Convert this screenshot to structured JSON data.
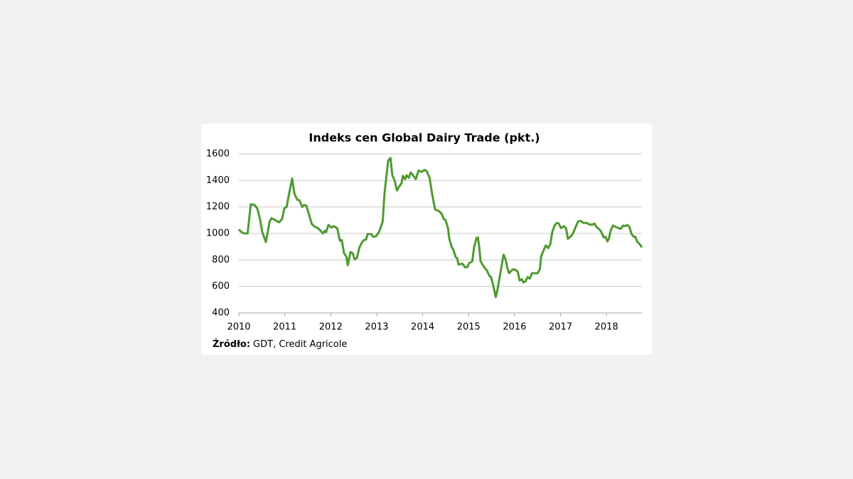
{
  "chart_data": {
    "type": "line",
    "title": "Indeks cen Global Dairy Trade (pkt.)",
    "source_label": "Źródło:",
    "source_text": "GDT, Credit Agricole",
    "xlim": [
      2010,
      2018.77
    ],
    "xticks": [
      2010,
      2011,
      2012,
      2013,
      2014,
      2015,
      2016,
      2017,
      2018
    ],
    "ylim": [
      400,
      1600
    ],
    "yticks": [
      400,
      600,
      800,
      1000,
      1200,
      1400,
      1600
    ],
    "grid": true,
    "series": [
      {
        "color": "#4e9a2f",
        "x": [
          2010.0,
          2010.06,
          2010.12,
          2010.19,
          2010.26,
          2010.34,
          2010.4,
          2010.46,
          2010.51,
          2010.59,
          2010.67,
          2010.71,
          2010.77,
          2010.84,
          2010.88,
          2010.94,
          2010.99,
          2011.04,
          2011.1,
          2011.16,
          2011.21,
          2011.27,
          2011.32,
          2011.38,
          2011.42,
          2011.47,
          2011.53,
          2011.59,
          2011.66,
          2011.72,
          2011.78,
          2011.83,
          2011.87,
          2011.9,
          2011.95,
          2012.01,
          2012.07,
          2012.14,
          2012.2,
          2012.24,
          2012.29,
          2012.34,
          2012.37,
          2012.43,
          2012.48,
          2012.52,
          2012.57,
          2012.62,
          2012.68,
          2012.72,
          2012.77,
          2012.8,
          2012.88,
          2012.92,
          2012.99,
          2013.05,
          2013.13,
          2013.17,
          2013.25,
          2013.3,
          2013.34,
          2013.39,
          2013.44,
          2013.5,
          2013.54,
          2013.57,
          2013.62,
          2013.65,
          2013.7,
          2013.74,
          2013.79,
          2013.85,
          2013.91,
          2013.98,
          2014.04,
          2014.09,
          2014.15,
          2014.21,
          2014.27,
          2014.35,
          2014.41,
          2014.46,
          2014.5,
          2014.55,
          2014.58,
          2014.63,
          2014.67,
          2014.72,
          2014.75,
          2014.78,
          2014.83,
          2014.87,
          2014.92,
          2014.97,
          2015.01,
          2015.08,
          2015.12,
          2015.17,
          2015.2,
          2015.23,
          2015.26,
          2015.31,
          2015.35,
          2015.4,
          2015.45,
          2015.49,
          2015.54,
          2015.59,
          2015.63,
          2015.69,
          2015.76,
          2015.8,
          2015.85,
          2015.88,
          2015.93,
          2015.97,
          2016.02,
          2016.07,
          2016.11,
          2016.16,
          2016.19,
          2016.24,
          2016.28,
          2016.33,
          2016.38,
          2016.44,
          2016.5,
          2016.55,
          2016.58,
          2016.64,
          2016.68,
          2016.73,
          2016.78,
          2016.82,
          2016.87,
          2016.92,
          2016.96,
          2017.01,
          2017.07,
          2017.12,
          2017.16,
          2017.23,
          2017.27,
          2017.33,
          2017.38,
          2017.44,
          2017.5,
          2017.57,
          2017.61,
          2017.68,
          2017.74,
          2017.78,
          2017.85,
          2017.89,
          2017.94,
          2017.98,
          2018.02,
          2018.05,
          2018.09,
          2018.14,
          2018.2,
          2018.26,
          2018.31,
          2018.36,
          2018.4,
          2018.45,
          2018.5,
          2018.54,
          2018.59,
          2018.63,
          2018.67,
          2018.71,
          2018.77
        ],
        "values": [
          1030,
          1010,
          1000,
          1000,
          1220,
          1215,
          1190,
          1110,
          1010,
          935,
          1090,
          1115,
          1105,
          1090,
          1085,
          1110,
          1190,
          1200,
          1310,
          1415,
          1300,
          1255,
          1250,
          1200,
          1215,
          1210,
          1140,
          1070,
          1050,
          1040,
          1020,
          1000,
          1020,
          1010,
          1065,
          1045,
          1055,
          1040,
          945,
          950,
          850,
          825,
          760,
          860,
          850,
          805,
          815,
          890,
          935,
          950,
          955,
          995,
          995,
          975,
          980,
          1010,
          1090,
          1300,
          1550,
          1570,
          1440,
          1400,
          1325,
          1360,
          1380,
          1435,
          1410,
          1440,
          1420,
          1460,
          1440,
          1410,
          1475,
          1465,
          1480,
          1470,
          1420,
          1290,
          1180,
          1170,
          1150,
          1110,
          1100,
          1040,
          960,
          900,
          875,
          820,
          815,
          765,
          770,
          770,
          745,
          745,
          775,
          790,
          900,
          965,
          970,
          900,
          790,
          760,
          740,
          720,
          680,
          670,
          600,
          520,
          580,
          700,
          840,
          810,
          730,
          700,
          720,
          730,
          725,
          710,
          645,
          655,
          630,
          640,
          670,
          660,
          700,
          700,
          700,
          730,
          830,
          880,
          910,
          890,
          920,
          1010,
          1060,
          1080,
          1075,
          1040,
          1055,
          1040,
          960,
          980,
          1000,
          1050,
          1090,
          1095,
          1080,
          1080,
          1070,
          1065,
          1075,
          1050,
          1030,
          1010,
          970,
          975,
          940,
          960,
          1020,
          1060,
          1050,
          1040,
          1035,
          1060,
          1055,
          1065,
          1050,
          1000,
          975,
          975,
          935,
          925,
          895
        ]
      }
    ]
  }
}
